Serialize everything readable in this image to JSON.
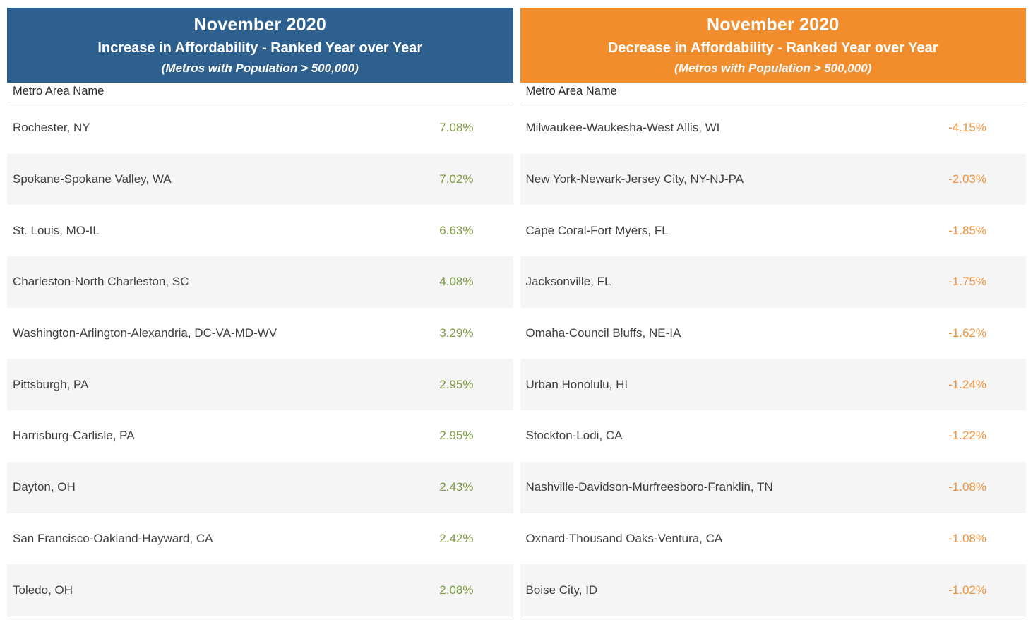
{
  "colors": {
    "increase_header_bg": "#2e608f",
    "decrease_header_bg": "#f28d2e",
    "increase_value_text": "#7c9c42",
    "decrease_value_text": "#f0933d",
    "row_alt_bg": "#f5f5f5",
    "row_text": "#3f3f3f",
    "divider": "#c9c9c9"
  },
  "chart_data": [
    {
      "type": "table",
      "month": "November 2020",
      "title": "Increase in Affordability - Ranked Year over Year",
      "subtitle": "(Metros with Population > 500,000)",
      "column_header": "Metro Area Name",
      "header_color": "#2e608f",
      "value_color": "#7c9c42",
      "rows": [
        {
          "metro": "Rochester, NY",
          "change": "7.08%",
          "change_pct": 7.08
        },
        {
          "metro": "Spokane-Spokane Valley, WA",
          "change": "7.02%",
          "change_pct": 7.02
        },
        {
          "metro": "St. Louis, MO-IL",
          "change": "6.63%",
          "change_pct": 6.63
        },
        {
          "metro": "Charleston-North Charleston, SC",
          "change": "4.08%",
          "change_pct": 4.08
        },
        {
          "metro": "Washington-Arlington-Alexandria, DC-VA-MD-WV",
          "change": "3.29%",
          "change_pct": 3.29
        },
        {
          "metro": "Pittsburgh, PA",
          "change": "2.95%",
          "change_pct": 2.95
        },
        {
          "metro": "Harrisburg-Carlisle, PA",
          "change": "2.95%",
          "change_pct": 2.95
        },
        {
          "metro": "Dayton, OH",
          "change": "2.43%",
          "change_pct": 2.43
        },
        {
          "metro": "San Francisco-Oakland-Hayward, CA",
          "change": "2.42%",
          "change_pct": 2.42
        },
        {
          "metro": "Toledo, OH",
          "change": "2.08%",
          "change_pct": 2.08
        }
      ]
    },
    {
      "type": "table",
      "month": "November 2020",
      "title": "Decrease in Affordability - Ranked Year over Year",
      "subtitle": "(Metros with Population > 500,000)",
      "column_header": "Metro Area Name",
      "header_color": "#f28d2e",
      "value_color": "#f0933d",
      "rows": [
        {
          "metro": "Milwaukee-Waukesha-West Allis, WI",
          "change": "-4.15%",
          "change_pct": -4.15
        },
        {
          "metro": "New York-Newark-Jersey City, NY-NJ-PA",
          "change": "-2.03%",
          "change_pct": -2.03
        },
        {
          "metro": "Cape Coral-Fort Myers, FL",
          "change": "-1.85%",
          "change_pct": -1.85
        },
        {
          "metro": "Jacksonville, FL",
          "change": "-1.75%",
          "change_pct": -1.75
        },
        {
          "metro": "Omaha-Council Bluffs, NE-IA",
          "change": "-1.62%",
          "change_pct": -1.62
        },
        {
          "metro": "Urban Honolulu, HI",
          "change": "-1.24%",
          "change_pct": -1.24
        },
        {
          "metro": "Stockton-Lodi, CA",
          "change": "-1.22%",
          "change_pct": -1.22
        },
        {
          "metro": "Nashville-Davidson-Murfreesboro-Franklin, TN",
          "change": "-1.08%",
          "change_pct": -1.08
        },
        {
          "metro": "Oxnard-Thousand Oaks-Ventura, CA",
          "change": "-1.08%",
          "change_pct": -1.08
        },
        {
          "metro": "Boise City, ID",
          "change": "-1.02%",
          "change_pct": -1.02
        }
      ]
    }
  ]
}
